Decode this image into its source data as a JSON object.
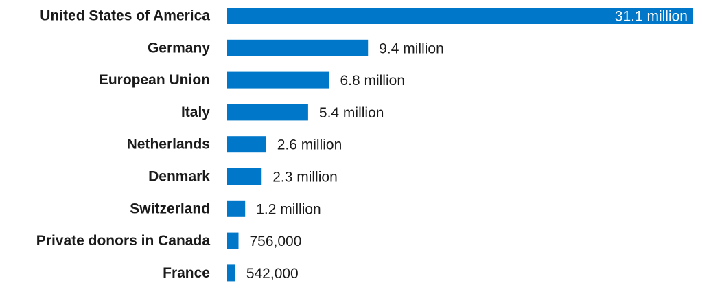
{
  "chart_data": {
    "type": "bar",
    "orientation": "horizontal",
    "categories": [
      "United States of America",
      "Germany",
      "European Union",
      "Italy",
      "Netherlands",
      "Denmark",
      "Switzerland",
      "Private donors in Canada",
      "France"
    ],
    "values": [
      31100000,
      9400000,
      6800000,
      5400000,
      2600000,
      2300000,
      1200000,
      756000,
      542000
    ],
    "value_labels": [
      "31.1 million",
      "9.4 million",
      "6.8 million",
      "5.4 million",
      "2.6 million",
      "2.3 million",
      "1.2 million",
      "756,000",
      "542,000"
    ],
    "title": "",
    "xlabel": "",
    "ylabel": "",
    "xlim": [
      0,
      31100000
    ],
    "grid": false,
    "legend": "none",
    "bar_color": "#0077c8"
  }
}
